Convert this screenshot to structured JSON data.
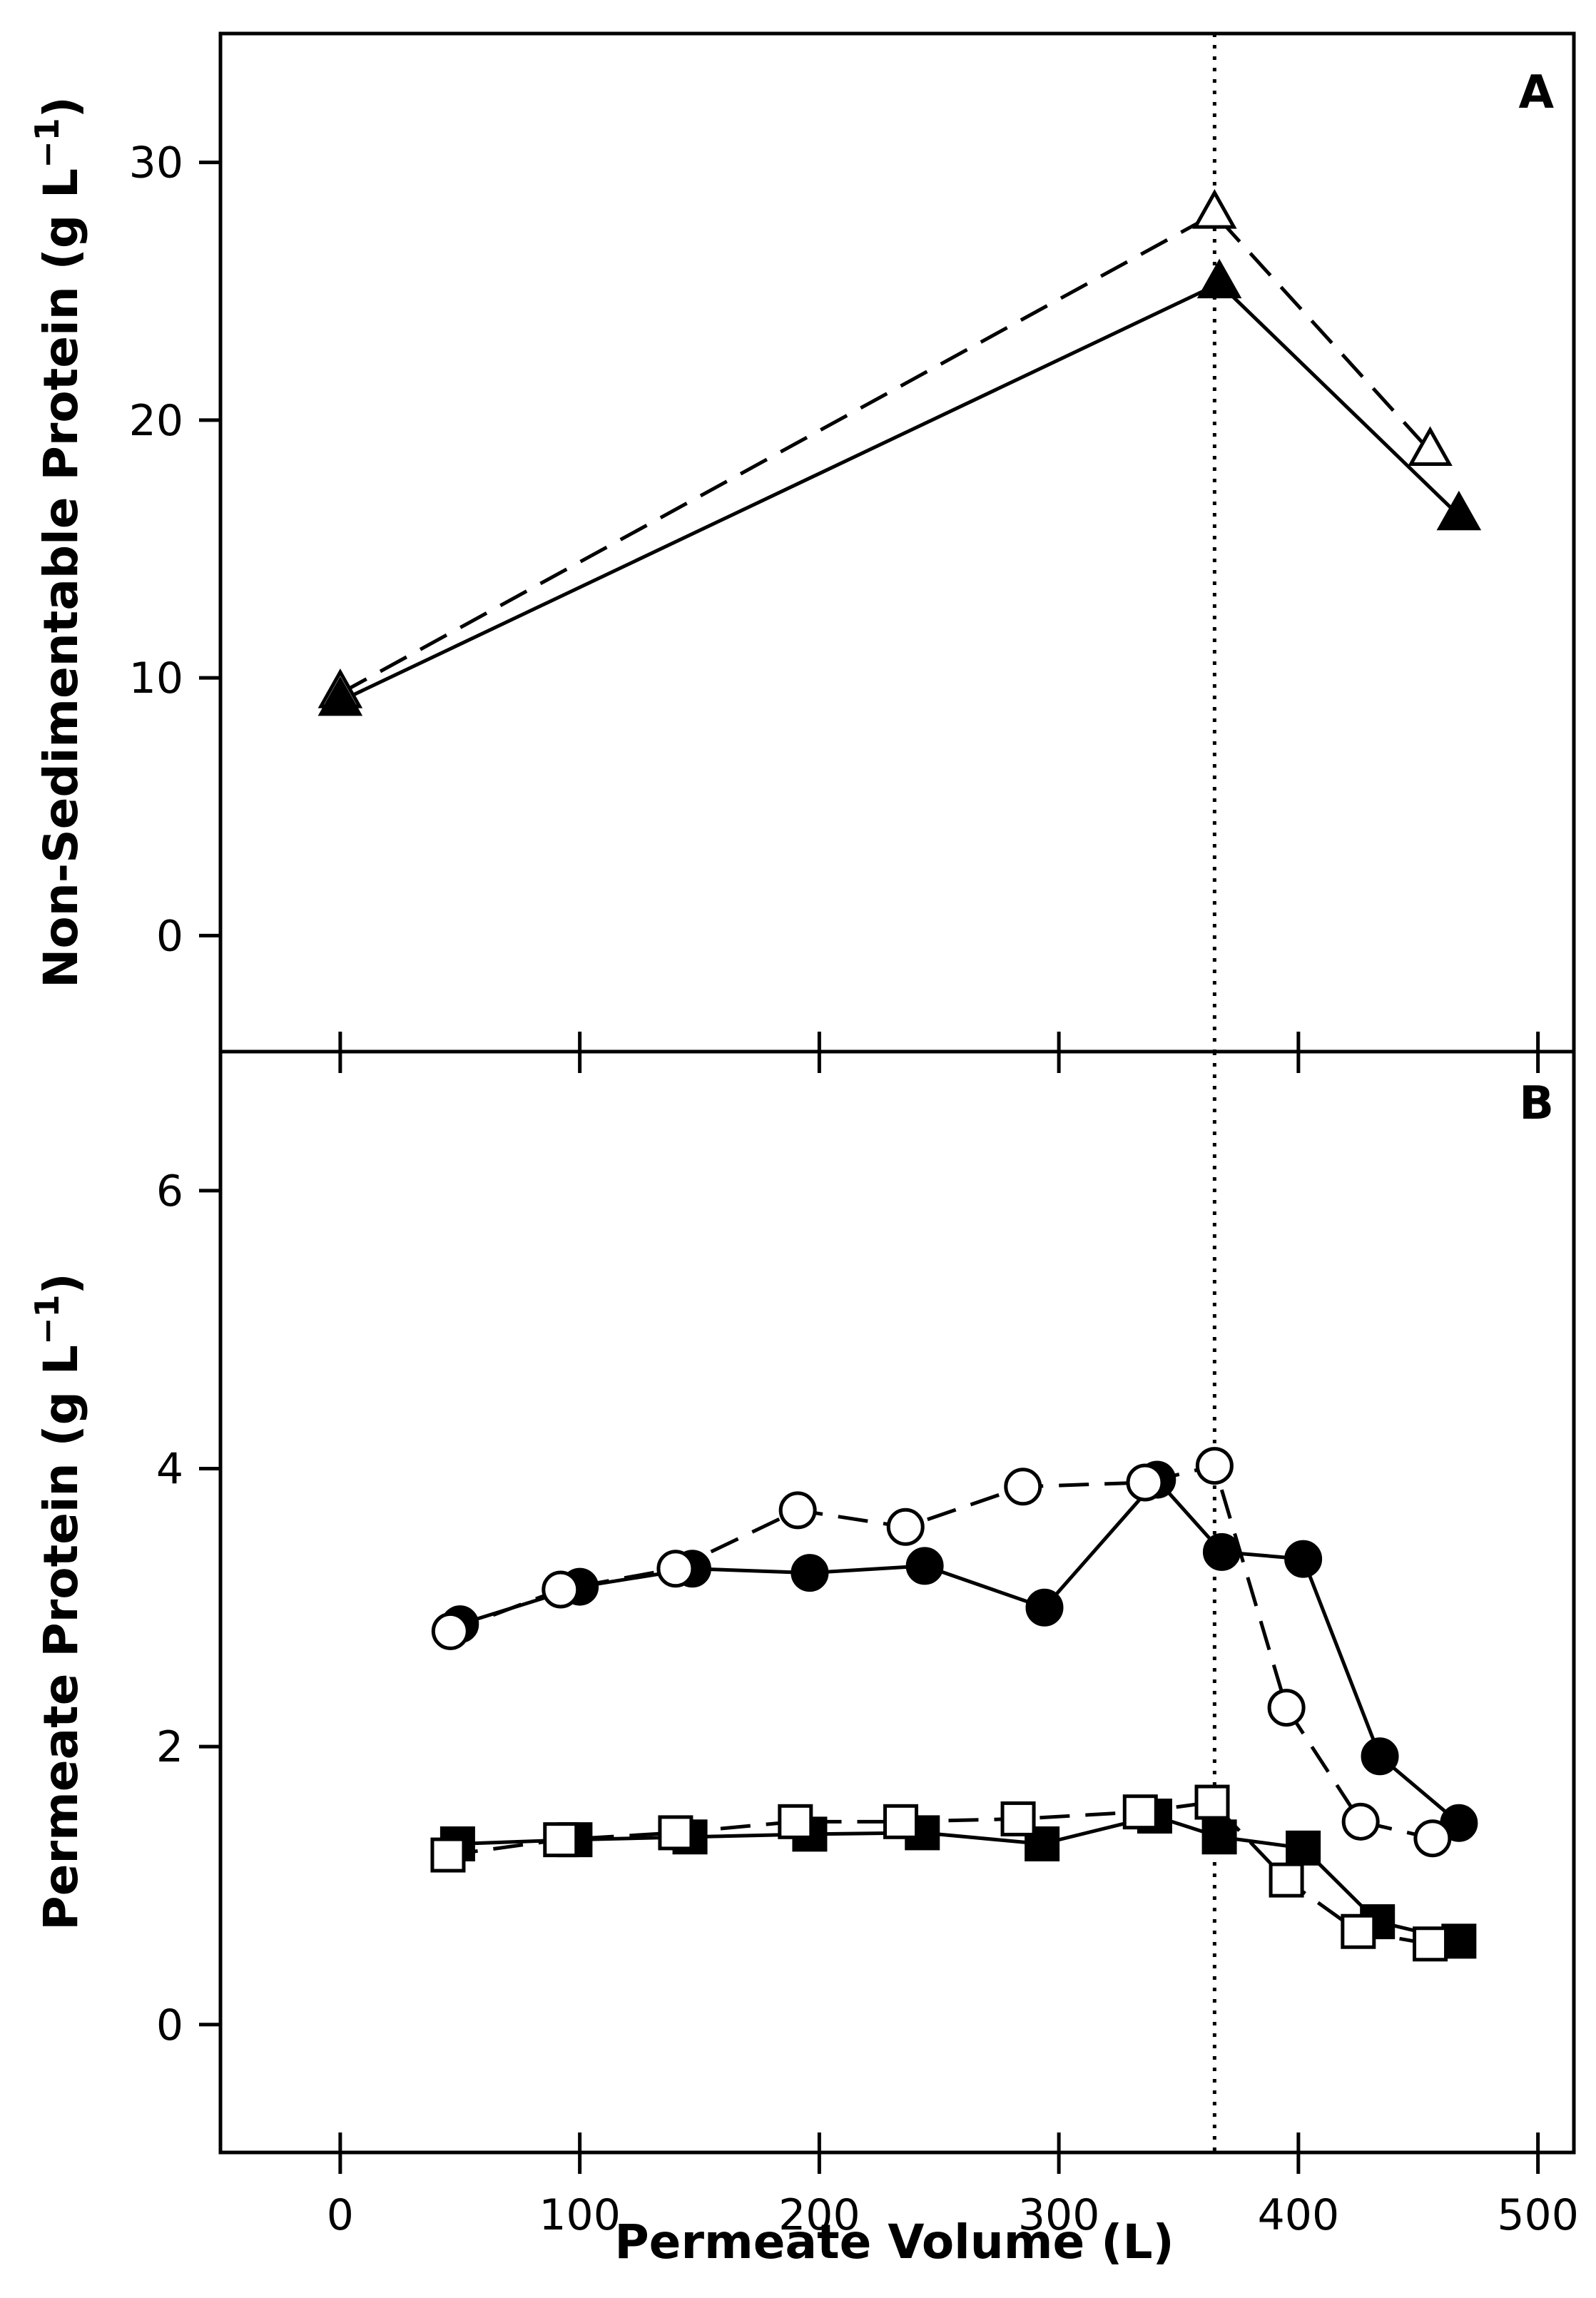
{
  "chart_data": [
    {
      "panel": "A",
      "type": "line",
      "ylabel": "Non-Sedimentable Protein (g L",
      "ylabel_sup": "−1",
      "ylabel_close": ")",
      "ylim": [
        -4.5,
        35
      ],
      "yticks": [
        0,
        10,
        20,
        30
      ],
      "xlim": [
        -50,
        515
      ],
      "xticks": [
        0,
        100,
        200,
        300,
        400,
        500
      ],
      "vline_x": 365,
      "series": [
        {
          "marker": "triangle-open",
          "line": "dashed",
          "points": [
            [
              0,
              9.4
            ],
            [
              365,
              28.0
            ],
            [
              455,
              18.8
            ]
          ]
        },
        {
          "marker": "triangle-filled",
          "line": "solid",
          "points": [
            [
              0,
              9.1
            ],
            [
              367,
              25.3
            ],
            [
              467,
              16.3
            ]
          ]
        }
      ]
    },
    {
      "panel": "B",
      "type": "line",
      "ylabel": "Permeate Protein (g L",
      "ylabel_sup": "−1",
      "ylabel_close": ")",
      "xlabel": "Permeate Volume (L)",
      "ylim": [
        -0.92,
        7.0
      ],
      "yticks": [
        0,
        2,
        4,
        6
      ],
      "xlim": [
        -50,
        515
      ],
      "xticks": [
        0,
        100,
        200,
        300,
        400,
        500
      ],
      "xtick_labels": [
        "0",
        "100",
        "200",
        "300",
        "400",
        "500"
      ],
      "vline_x": 365,
      "series": [
        {
          "marker": "circle-filled",
          "line": "solid",
          "points": [
            [
              50,
              2.88
            ],
            [
              100,
              3.15
            ],
            [
              147,
              3.28
            ],
            [
              196,
              3.25
            ],
            [
              244,
              3.3
            ],
            [
              294,
              3.0
            ],
            [
              341,
              3.92
            ],
            [
              368,
              3.4
            ],
            [
              402,
              3.35
            ],
            [
              434,
              1.93
            ],
            [
              467,
              1.45
            ]
          ]
        },
        {
          "marker": "circle-open",
          "line": "dashed",
          "points": [
            [
              46,
              2.83
            ],
            [
              92,
              3.13
            ],
            [
              140,
              3.28
            ],
            [
              191,
              3.7
            ],
            [
              236,
              3.58
            ],
            [
              285,
              3.87
            ],
            [
              336,
              3.9
            ],
            [
              365,
              4.02
            ],
            [
              395,
              2.28
            ],
            [
              426,
              1.46
            ],
            [
              456,
              1.34
            ]
          ]
        },
        {
          "marker": "square-filled",
          "line": "solid",
          "points": [
            [
              49,
              1.3
            ],
            [
              98,
              1.33
            ],
            [
              146,
              1.35
            ],
            [
              196,
              1.37
            ],
            [
              243,
              1.38
            ],
            [
              293,
              1.3
            ],
            [
              340,
              1.5
            ],
            [
              367,
              1.35
            ],
            [
              402,
              1.27
            ],
            [
              433,
              0.74
            ],
            [
              467,
              0.6
            ]
          ]
        },
        {
          "marker": "square-open",
          "line": "dashed",
          "points": [
            [
              45,
              1.22
            ],
            [
              92,
              1.33
            ],
            [
              140,
              1.38
            ],
            [
              190,
              1.46
            ],
            [
              234,
              1.46
            ],
            [
              283,
              1.48
            ],
            [
              334,
              1.53
            ],
            [
              364,
              1.6
            ],
            [
              395,
              1.04
            ],
            [
              425,
              0.67
            ],
            [
              455,
              0.58
            ]
          ]
        }
      ]
    }
  ]
}
